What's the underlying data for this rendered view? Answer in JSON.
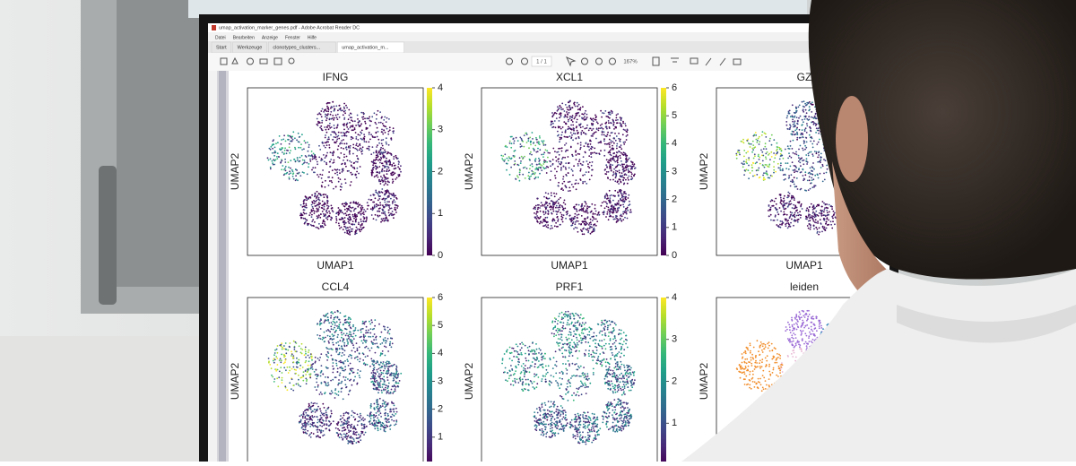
{
  "window": {
    "title": "umap_activation_marker_genes.pdf - Adobe Acrobat Reader DC",
    "menu": [
      "Datei",
      "Bearbeiten",
      "Anzeige",
      "Fenster",
      "Hilfe"
    ],
    "tabs": [
      "Start",
      "Werkzeuge",
      "clonotypes_clusters...",
      "umap_activation_m..."
    ],
    "page": "1 / 1",
    "zoom": "167%"
  },
  "plots": [
    {
      "title": "IFNG",
      "xlabel": "UMAP1",
      "ylabel": "UMAP2",
      "clim": [
        0,
        4
      ],
      "colorbar": [
        0,
        1,
        2,
        3,
        4
      ]
    },
    {
      "title": "XCL1",
      "xlabel": "UMAP1",
      "ylabel": "UMAP2",
      "clim": [
        0,
        6
      ],
      "colorbar": [
        0,
        1,
        2,
        3,
        4,
        5,
        6
      ]
    },
    {
      "title": "GZ",
      "xlabel": "UMAP1",
      "ylabel": "UMAP2"
    },
    {
      "title": "CCL4",
      "ylabel": "UMAP2",
      "clim": [
        0,
        6
      ],
      "colorbar": [
        1,
        2,
        3,
        4,
        5,
        6
      ]
    },
    {
      "title": "PRF1",
      "ylabel": "UMAP2",
      "clim": [
        0,
        4
      ],
      "colorbar": [
        1,
        2,
        3,
        4
      ]
    },
    {
      "title": "leiden",
      "ylabel": "UMAP2"
    }
  ]
}
